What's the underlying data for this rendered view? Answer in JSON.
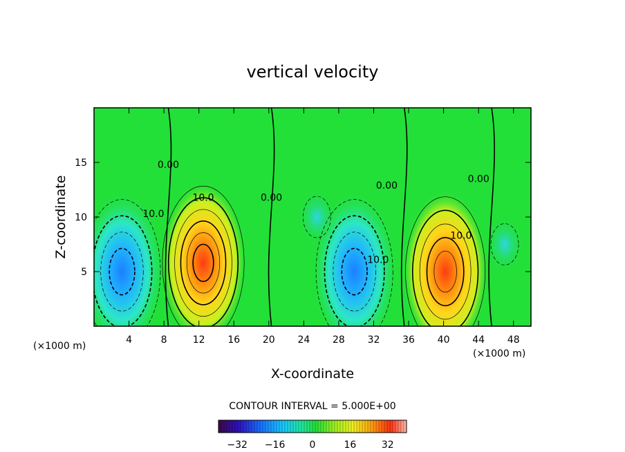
{
  "chart_data": {
    "type": "heatmap",
    "title": "vertical velocity",
    "xlabel": "X-coordinate",
    "ylabel": "Z-coordinate",
    "x_unit_left": "(×1000 m)",
    "x_unit_right": "(×1000 m)",
    "xlim": [
      0,
      50
    ],
    "ylim": [
      0,
      20
    ],
    "xticks": [
      4,
      8,
      12,
      16,
      20,
      24,
      28,
      32,
      36,
      40,
      44,
      48
    ],
    "yticks": [
      5,
      10,
      15
    ],
    "contour_interval_text": "CONTOUR INTERVAL = 5.000E+00",
    "contour_labels": [
      {
        "text": "10.0",
        "x": 12.5,
        "y": 11.5
      },
      {
        "text": "10.0",
        "x": 6.8,
        "y": 10.0
      },
      {
        "text": "0.00",
        "x": 8.5,
        "y": 14.5
      },
      {
        "text": "0.00",
        "x": 20.3,
        "y": 11.5
      },
      {
        "text": "0.00",
        "x": 33.5,
        "y": 12.6
      },
      {
        "text": "10.0",
        "x": 32.5,
        "y": 5.8
      },
      {
        "text": "10.0",
        "x": 42.0,
        "y": 8.0
      },
      {
        "text": "0.00",
        "x": 44.0,
        "y": 13.2
      }
    ],
    "extrema": [
      {
        "x": 3.2,
        "z": 5.0,
        "value": -28
      },
      {
        "x": 12.5,
        "z": 5.8,
        "value": 36
      },
      {
        "x": 29.8,
        "z": 5.0,
        "value": -26
      },
      {
        "x": 40.2,
        "z": 5.0,
        "value": 34
      },
      {
        "x": 25.5,
        "z": 10.0,
        "value": -14
      },
      {
        "x": 47.0,
        "z": 7.5,
        "value": -12
      }
    ],
    "colorbar": {
      "range": [
        -40,
        40
      ],
      "ticks": [
        -32,
        -16,
        0,
        16,
        32
      ],
      "tick_labels": [
        "−32",
        "−16",
        "0",
        "16",
        "32"
      ]
    },
    "colors": {
      "background_field": "#22e038",
      "max_positive": "#ff3a10",
      "max_negative": "#1a8cff"
    }
  }
}
